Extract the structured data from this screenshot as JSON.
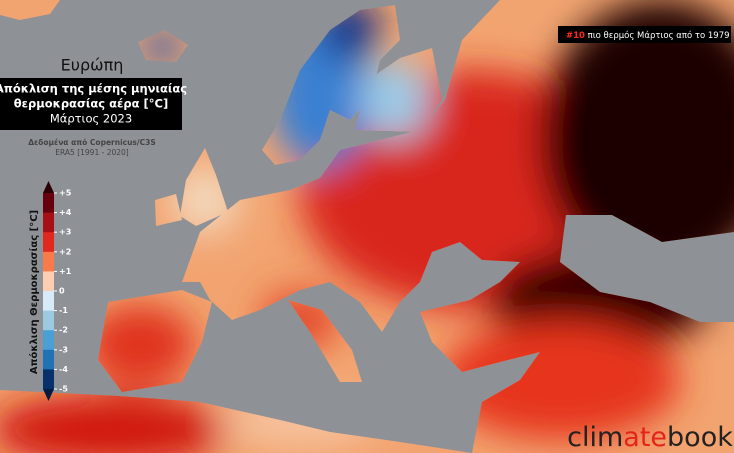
{
  "header": {
    "region": "Ευρώπη",
    "title_lines": [
      "Απόκλιση της μέσης μηνιαίας",
      "θερμοκρασίας αέρα [°C]"
    ],
    "period": "Μάρτιος 2023",
    "source": "Δεδομένα από Copernicus/C3S",
    "reference": "ERA5 [1991 - 2020]"
  },
  "rank_badge": {
    "rank": "#10",
    "text": "πιο θερμός Μάρτιος από το 1979"
  },
  "colorbar": {
    "label": "Απόκλιση Θερμοκρασίας [°C]",
    "ticks": [
      {
        "value": 5,
        "label": "+5"
      },
      {
        "value": 4,
        "label": "+4"
      },
      {
        "value": 3,
        "label": "+3"
      },
      {
        "value": 2,
        "label": "+2"
      },
      {
        "value": 1,
        "label": "+1"
      },
      0,
      -1,
      -2,
      -3,
      -4,
      -5
    ],
    "colors": [
      "#67000d",
      "#a50f15",
      "#e0281f",
      "#fb7a4a",
      "#fdcfb0",
      "#d6ebf7",
      "#9ecae1",
      "#4a9fd4",
      "#2171b5",
      "#08306b"
    ],
    "over_color": "#2a0004",
    "under_color": "#041a40"
  },
  "logo": {
    "parts": [
      "clim",
      "ate",
      "book"
    ]
  }
}
